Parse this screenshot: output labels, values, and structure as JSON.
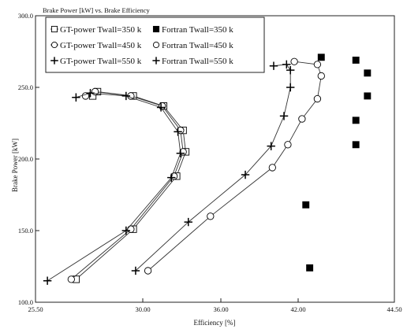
{
  "chart_data": {
    "type": "line",
    "title": "Brake Power [kW] vs. Brake Efficiency",
    "xlabel": "Efficiency [%]",
    "ylabel": "Brake Power [kW]",
    "xlim": [
      25.5,
      44.5
    ],
    "ylim": [
      100.0,
      300.0
    ],
    "x_ticks": [
      25.5,
      30.0,
      36.0,
      42.0,
      44.5
    ],
    "y_ticks": [
      100.0,
      150.0,
      200.0,
      250.0,
      300.0
    ],
    "x_tick_labels": [
      "25.50",
      "30.00",
      "36.00",
      "42.00",
      "44.50"
    ],
    "y_tick_labels": [
      "100.0",
      "150.0",
      "200.0",
      "250.0",
      "300.0"
    ],
    "grid": false,
    "legend_position": "top-left",
    "series": [
      {
        "name": "GT-power Twall=350 k",
        "marker": "open-square",
        "connected": true,
        "points": [
          [
            27.2,
            116
          ],
          [
            29.6,
            151
          ],
          [
            32.6,
            188
          ],
          [
            33.3,
            205
          ],
          [
            33.1,
            220
          ],
          [
            31.6,
            237
          ],
          [
            29.6,
            244
          ],
          [
            28.1,
            247
          ],
          [
            27.9,
            244
          ]
        ]
      },
      {
        "name": "GT-power Twall=450 k",
        "marker": "open-circle",
        "connected": true,
        "points": [
          [
            27.0,
            116
          ],
          [
            29.5,
            151
          ],
          [
            32.4,
            188
          ],
          [
            33.1,
            205
          ],
          [
            32.9,
            220
          ],
          [
            31.5,
            237
          ],
          [
            29.5,
            244
          ],
          [
            28.0,
            247
          ],
          [
            27.6,
            244
          ]
        ]
      },
      {
        "name": "GT-power Twall=550 k",
        "marker": "plus",
        "connected": true,
        "points": [
          [
            26.0,
            115
          ],
          [
            29.3,
            150
          ],
          [
            32.2,
            187
          ],
          [
            32.9,
            204
          ],
          [
            32.7,
            219
          ],
          [
            31.4,
            236
          ],
          [
            29.3,
            244
          ],
          [
            27.8,
            246
          ],
          [
            27.2,
            243
          ]
        ]
      },
      {
        "name": "Fortran Twall=350 k",
        "marker": "filled-square",
        "connected": false,
        "points": [
          [
            42.3,
            124
          ],
          [
            42.2,
            168
          ],
          [
            43.5,
            210
          ],
          [
            43.5,
            227
          ],
          [
            43.8,
            244
          ],
          [
            43.8,
            260
          ],
          [
            43.5,
            269
          ],
          [
            42.6,
            271
          ]
        ]
      },
      {
        "name": "Fortran Twall=450 k",
        "marker": "open-circle",
        "connected": true,
        "points": [
          [
            30.4,
            122
          ],
          [
            35.2,
            160
          ],
          [
            40.0,
            194
          ],
          [
            41.2,
            210
          ],
          [
            42.1,
            228
          ],
          [
            42.5,
            242
          ],
          [
            42.6,
            258
          ],
          [
            42.5,
            266
          ],
          [
            41.7,
            268
          ]
        ]
      },
      {
        "name": "Fortran Twall=550 k",
        "marker": "plus",
        "connected": true,
        "points": [
          [
            29.7,
            122
          ],
          [
            33.5,
            156
          ],
          [
            37.9,
            189
          ],
          [
            39.9,
            209
          ],
          [
            40.9,
            230
          ],
          [
            41.4,
            250
          ],
          [
            41.4,
            262
          ],
          [
            41.1,
            266
          ],
          [
            40.1,
            265
          ]
        ]
      }
    ]
  }
}
